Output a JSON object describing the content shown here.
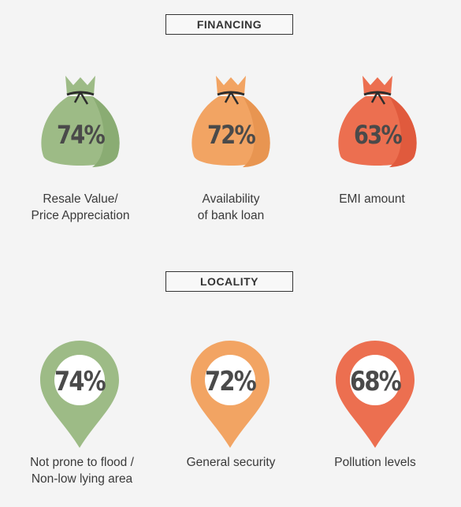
{
  "financing": {
    "title": "FINANCING",
    "items": [
      {
        "value": "74%",
        "label_lines": [
          "Resale Value/",
          "Price Appreciation"
        ],
        "color": "#9dbb86",
        "dark": "#8aac73"
      },
      {
        "value": "72%",
        "label_lines": [
          "Availability",
          "of bank loan"
        ],
        "color": "#f2a463",
        "dark": "#e89551"
      },
      {
        "value": "63%",
        "label_lines": [
          "EMI amount",
          ""
        ],
        "color": "#ec6f50",
        "dark": "#e05a3d"
      }
    ]
  },
  "locality": {
    "title": "LOCALITY",
    "items": [
      {
        "value": "74%",
        "label_lines": [
          "Not prone to flood /",
          "Non-low lying area"
        ],
        "color": "#9dbb86"
      },
      {
        "value": "72%",
        "label_lines": [
          "General security",
          ""
        ],
        "color": "#f2a463"
      },
      {
        "value": "68%",
        "label_lines": [
          "Pollution levels",
          ""
        ],
        "color": "#ec6f50"
      }
    ]
  }
}
